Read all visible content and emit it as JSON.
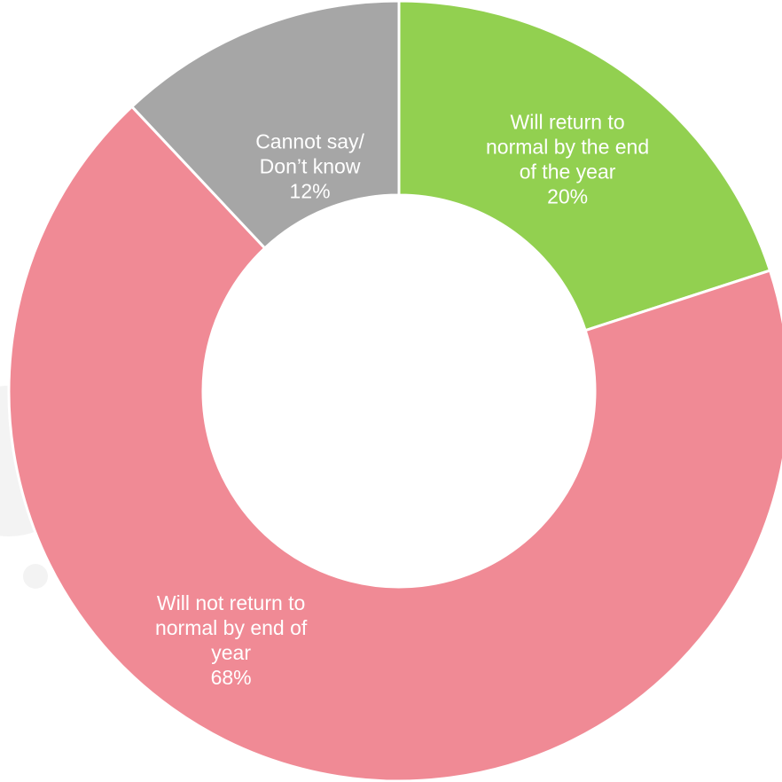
{
  "chart_data": {
    "type": "pie",
    "donut": true,
    "slices": [
      {
        "label_lines": [
          "Will return to",
          "normal by the end",
          "of the year"
        ],
        "value": 20,
        "value_label": "20%",
        "color": "#92d050"
      },
      {
        "label_lines": [
          "Will not return to",
          "normal by end of",
          "year"
        ],
        "value": 68,
        "value_label": "68%",
        "color": "#f08a95"
      },
      {
        "label_lines": [
          "Cannot say/",
          "Don’t know"
        ],
        "value": 12,
        "value_label": "12%",
        "color": "#a6a6a6"
      }
    ],
    "start_angle_deg": 0,
    "direction": "clockwise"
  }
}
